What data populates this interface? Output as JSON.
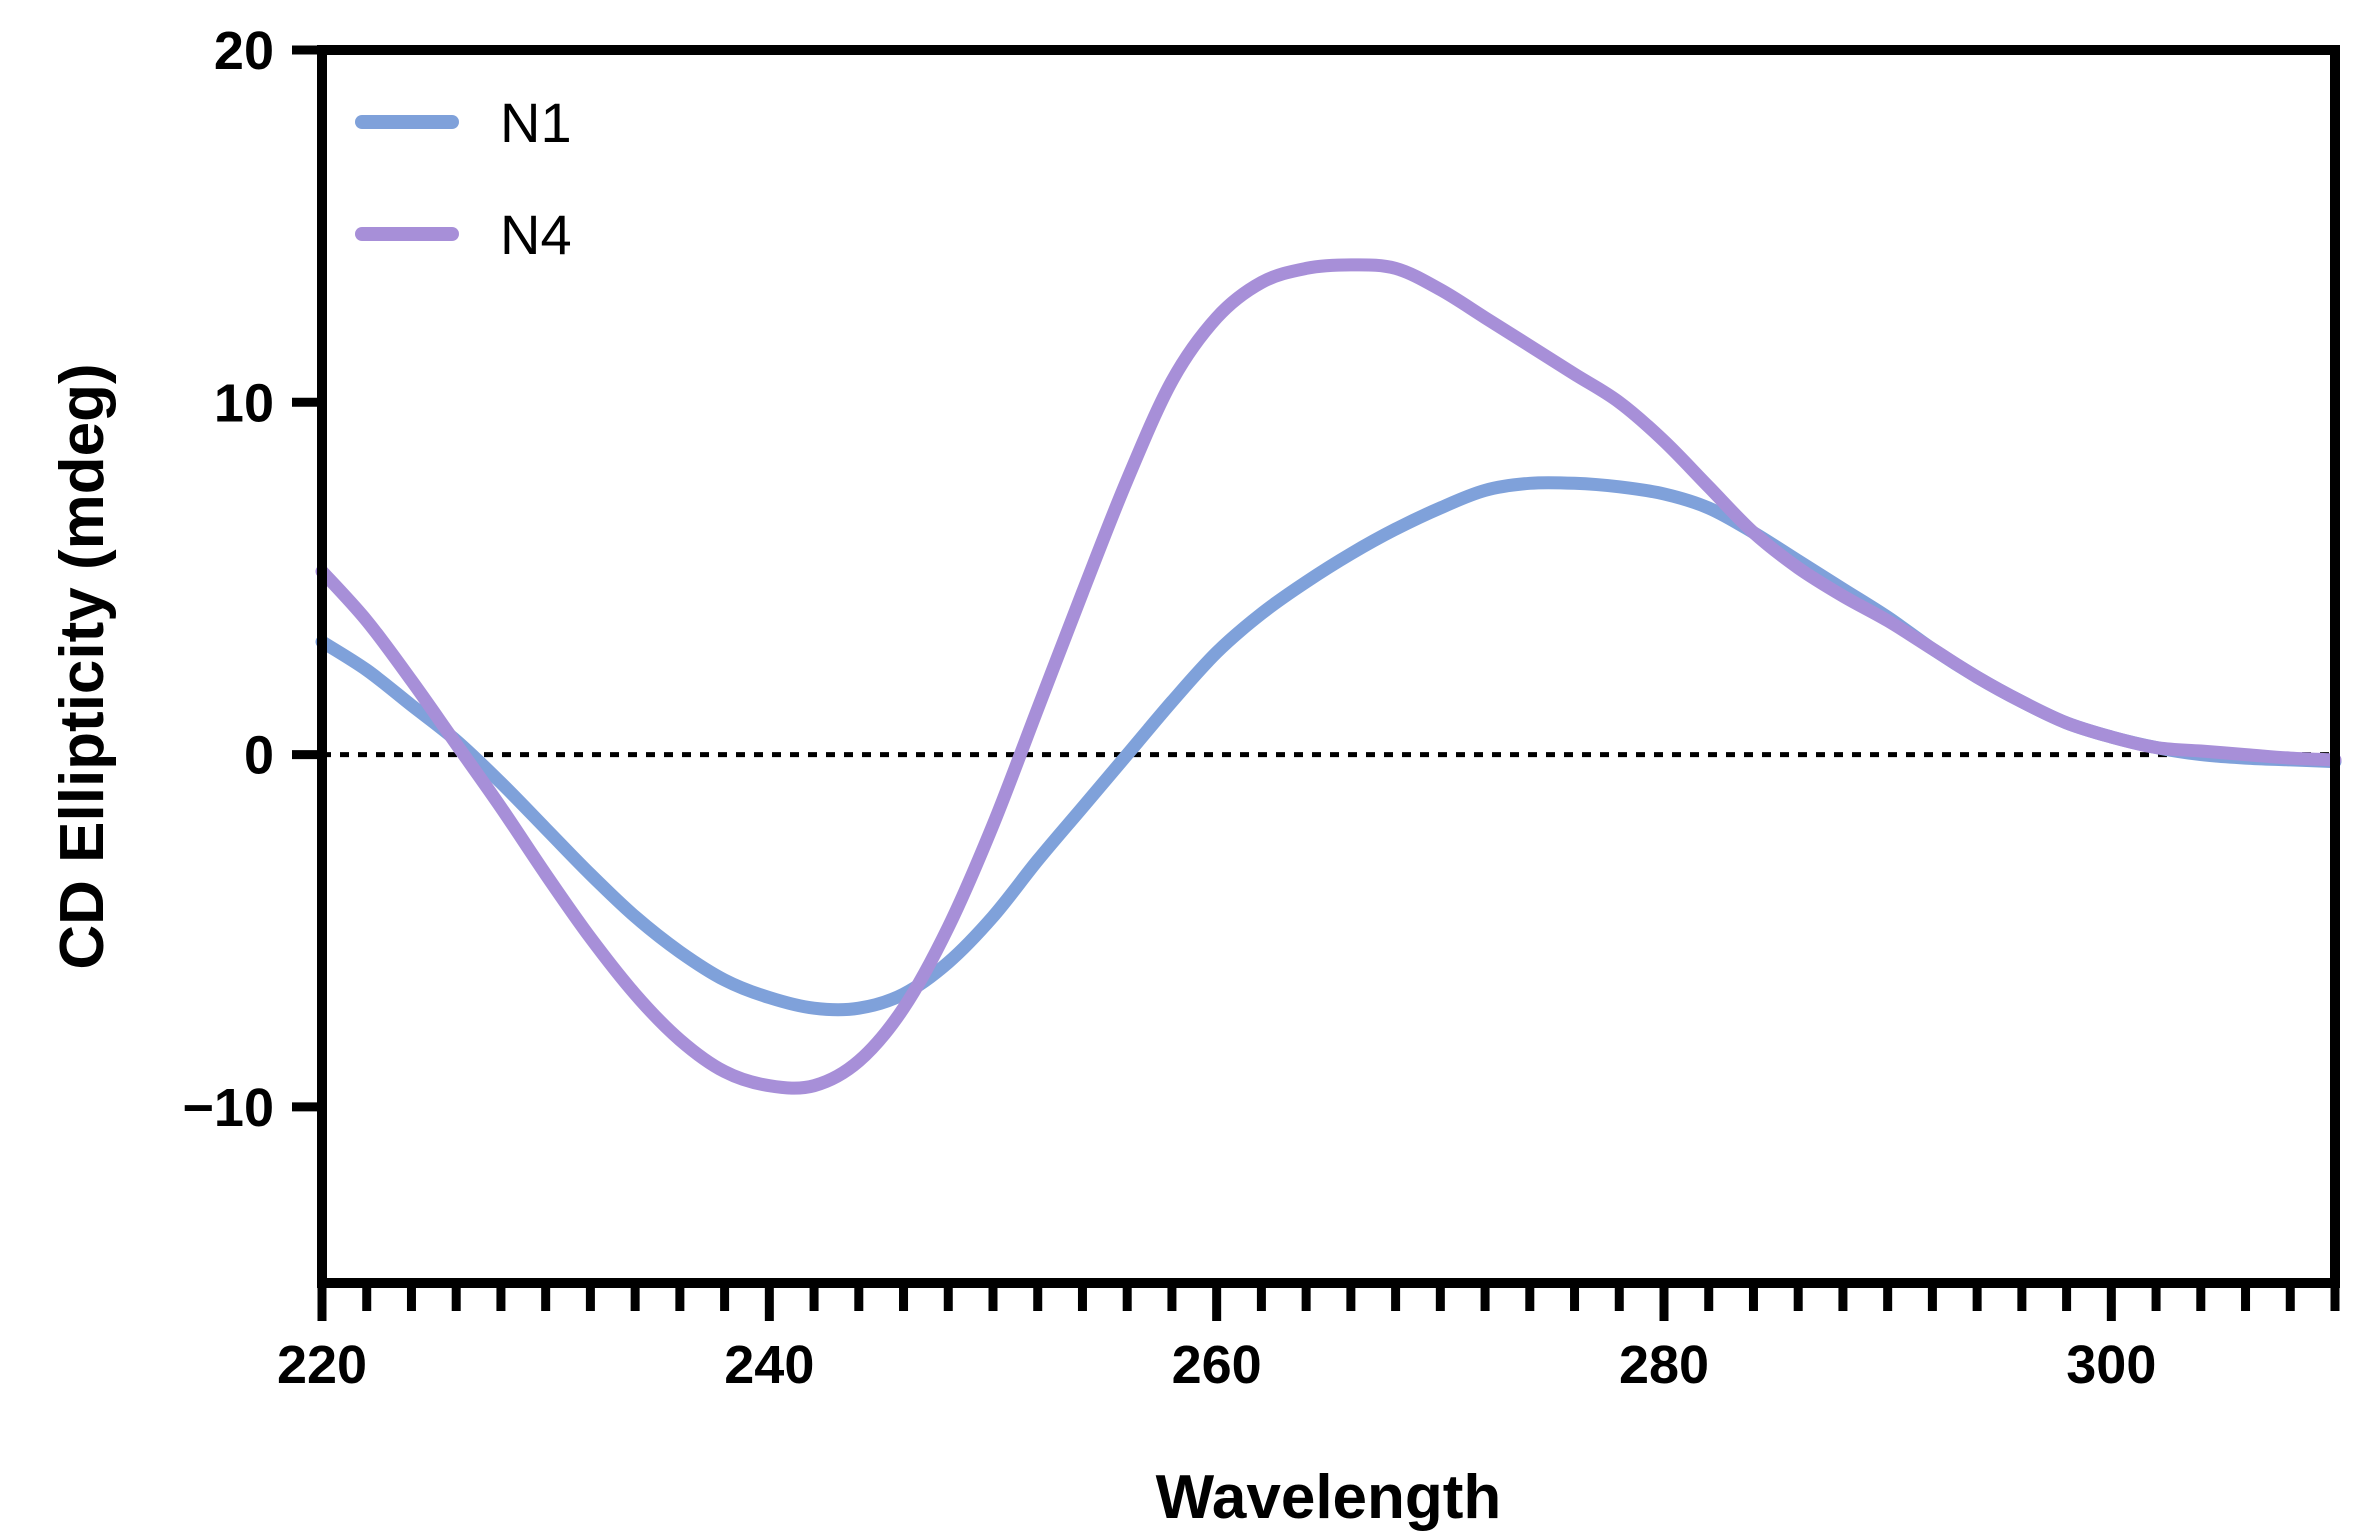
{
  "chart_data": {
    "type": "line",
    "title": "",
    "xlabel": "Wavelength",
    "ylabel": "CD Ellipticity (mdeg)",
    "xlim": [
      220,
      310
    ],
    "ylim": [
      -15,
      20
    ],
    "x_major_ticks": [
      220,
      240,
      260,
      280,
      300
    ],
    "x_minor_step": 2,
    "y_ticks": [
      20,
      10,
      0,
      -10
    ],
    "x_tick_labels": [
      "220",
      "240",
      "260",
      "280",
      "300"
    ],
    "y_tick_labels": [
      "20",
      "10",
      "0",
      "−10"
    ],
    "zero_line": {
      "y": 0,
      "style": "dotted"
    },
    "legend_position": "top-left",
    "series": [
      {
        "name": "N1",
        "color": "#7FA1DA",
        "x": [
          220,
          222,
          224,
          226,
          228,
          230,
          232,
          234,
          236,
          238,
          240,
          242,
          244,
          246,
          248,
          250,
          252,
          254,
          256,
          258,
          260,
          262,
          264,
          266,
          268,
          270,
          272,
          274,
          276,
          278,
          280,
          282,
          284,
          286,
          288,
          290,
          292,
          294,
          296,
          298,
          300,
          302,
          304,
          306,
          308,
          310
        ],
        "values": [
          3.2,
          2.4,
          1.4,
          0.4,
          -0.8,
          -2.1,
          -3.4,
          -4.6,
          -5.6,
          -6.4,
          -6.9,
          -7.2,
          -7.2,
          -6.8,
          -5.9,
          -4.6,
          -3.0,
          -1.5,
          0.0,
          1.5,
          2.9,
          4.0,
          4.9,
          5.7,
          6.4,
          7.0,
          7.5,
          7.7,
          7.7,
          7.6,
          7.4,
          7.0,
          6.3,
          5.5,
          4.7,
          3.9,
          3.0,
          2.2,
          1.5,
          0.9,
          0.5,
          0.2,
          0.0,
          -0.1,
          -0.15,
          -0.2
        ]
      },
      {
        "name": "N4",
        "color": "#A78FD8",
        "x": [
          220,
          222,
          224,
          226,
          228,
          230,
          232,
          234,
          236,
          238,
          240,
          242,
          244,
          246,
          248,
          250,
          252,
          254,
          256,
          258,
          260,
          262,
          264,
          266,
          268,
          270,
          272,
          274,
          276,
          278,
          280,
          282,
          284,
          286,
          288,
          290,
          292,
          294,
          296,
          298,
          300,
          302,
          304,
          306,
          308,
          310
        ],
        "values": [
          5.2,
          3.8,
          2.1,
          0.3,
          -1.5,
          -3.4,
          -5.2,
          -6.8,
          -8.1,
          -9.0,
          -9.4,
          -9.4,
          -8.7,
          -7.2,
          -4.9,
          -2.0,
          1.3,
          4.6,
          7.8,
          10.6,
          12.4,
          13.4,
          13.8,
          13.9,
          13.8,
          13.2,
          12.4,
          11.6,
          10.8,
          10.0,
          8.9,
          7.6,
          6.3,
          5.3,
          4.5,
          3.8,
          3.0,
          2.2,
          1.5,
          0.9,
          0.5,
          0.2,
          0.1,
          0.0,
          -0.1,
          -0.15
        ]
      }
    ]
  }
}
